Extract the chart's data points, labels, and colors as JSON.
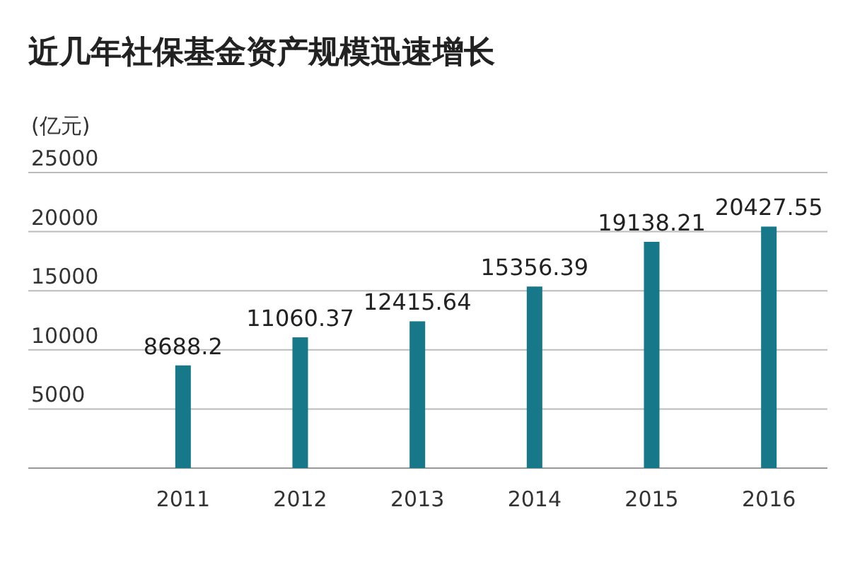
{
  "chart_data": {
    "type": "bar",
    "title": "近几年社保基金资产规模迅速增长",
    "ylabel": "(亿元)",
    "categories": [
      "2011",
      "2012",
      "2013",
      "2014",
      "2015",
      "2016"
    ],
    "values": [
      8688.2,
      11060.37,
      12415.64,
      15356.39,
      19138.21,
      20427.55
    ],
    "color": "#17788a",
    "ylim": [
      0,
      25000
    ],
    "yticks": [
      5000,
      10000,
      15000,
      20000,
      25000
    ],
    "grid": "y",
    "data_labels": true
  }
}
